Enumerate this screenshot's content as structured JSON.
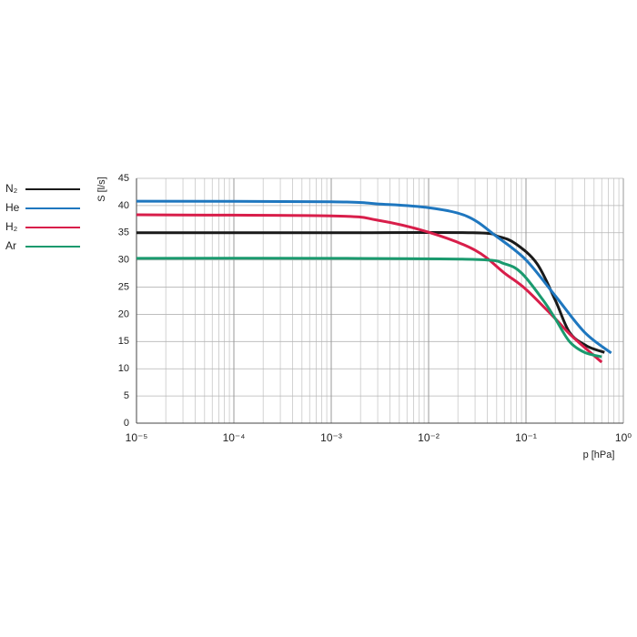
{
  "chart_data": {
    "type": "line",
    "xlabel": "p [hPa]",
    "ylabel": "S [l/s]",
    "xscale": "log",
    "grid": true,
    "legend": "left",
    "xlim": [
      1e-05,
      1
    ],
    "ylim": [
      0,
      45
    ],
    "xticks": [
      {
        "value": 1e-05,
        "label": "10⁻⁵"
      },
      {
        "value": 0.0001,
        "label": "10⁻⁴"
      },
      {
        "value": 0.001,
        "label": "10⁻³"
      },
      {
        "value": 0.01,
        "label": "10⁻²"
      },
      {
        "value": 0.1,
        "label": "10⁻¹"
      },
      {
        "value": 1,
        "label": "10⁰"
      }
    ],
    "yticks": [
      0,
      5,
      10,
      15,
      20,
      25,
      30,
      35,
      40,
      45
    ],
    "series": [
      {
        "name": "N₂",
        "color": "#1a1a1a",
        "x": [
          1e-05,
          0.001,
          0.0287,
          0.052,
          0.078,
          0.13,
          0.2,
          0.28,
          0.42,
          0.64
        ],
        "values": [
          35,
          35,
          35,
          34.3,
          33,
          29.3,
          22.6,
          16.7,
          14.2,
          13
        ]
      },
      {
        "name": "He",
        "color": "#1f77bf",
        "x": [
          1e-05,
          0.001,
          0.003,
          0.01,
          0.025,
          0.05,
          0.1,
          0.2,
          0.4,
          0.75
        ],
        "values": [
          40.8,
          40.7,
          40.3,
          39.6,
          38,
          34.3,
          30,
          23.4,
          16.7,
          12.9
        ]
      },
      {
        "name": "H₂",
        "color": "#d81e4a",
        "x": [
          1e-05,
          0.001,
          0.003,
          0.01,
          0.03,
          0.06,
          0.1,
          0.2,
          0.3,
          0.6
        ],
        "values": [
          38.3,
          38.1,
          37.3,
          35.1,
          31.8,
          27.6,
          24.6,
          19.2,
          15.9,
          11.2
        ]
      },
      {
        "name": "Ar",
        "color": "#1a9a6e",
        "x": [
          1e-05,
          0.001,
          0.03,
          0.06,
          0.09,
          0.15,
          0.2,
          0.28,
          0.4,
          0.6
        ],
        "values": [
          30.3,
          30.3,
          30.1,
          29.3,
          27.6,
          22.6,
          19.2,
          15,
          13,
          12.2
        ]
      }
    ]
  }
}
